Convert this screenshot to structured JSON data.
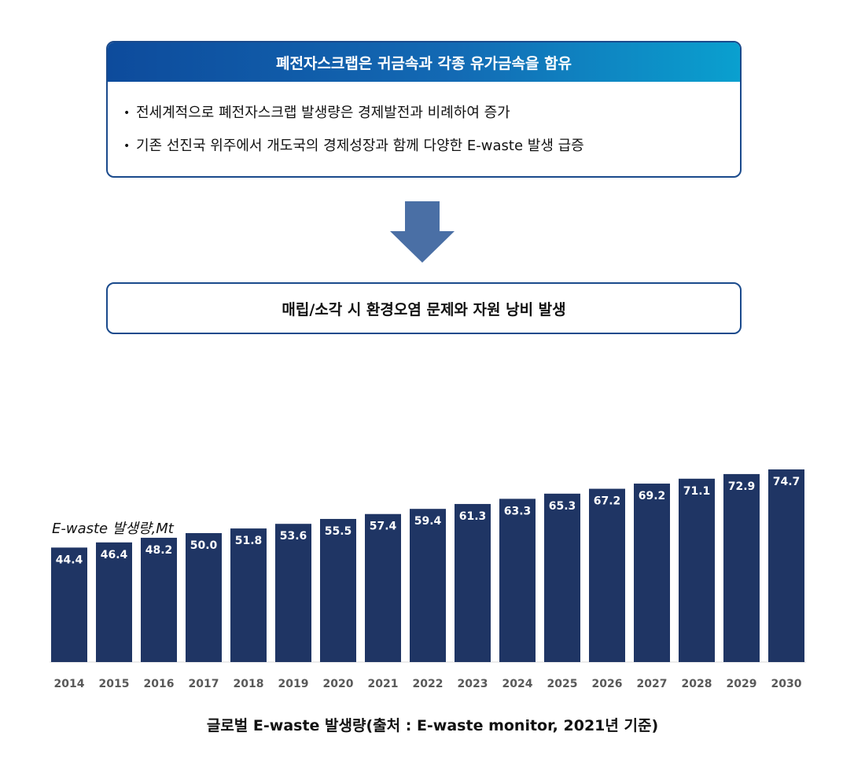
{
  "top_box": {
    "title": "폐전자스크랩은 귀금속과 각종 유가금속을 함유",
    "bullets": [
      "전세계적으로 폐전자스크랩 발생량은 경제발전과 비례하여 증가",
      "기존 선진국 위주에서 개도국의 경제성장과 함께 다양한 E-waste 발생 급증"
    ],
    "bullet_symbol": "•"
  },
  "arrow": {
    "icon": "down-arrow-icon",
    "color": "#4a6fa5"
  },
  "result_box": {
    "text": "매립/소각 시 환경오염 문제와 자원 낭비 발생"
  },
  "colors": {
    "bar": "#1f3564",
    "box_border": "#1a4a8c",
    "header_gradient": [
      "#0d4b9c",
      "#0aa0cf"
    ]
  },
  "chart_data": {
    "type": "bar",
    "categories": [
      "2014",
      "2015",
      "2016",
      "2017",
      "2018",
      "2019",
      "2020",
      "2021",
      "2022",
      "2023",
      "2024",
      "2025",
      "2026",
      "2027",
      "2028",
      "2029",
      "2030"
    ],
    "values": [
      44.4,
      46.4,
      48.2,
      50.0,
      51.8,
      53.6,
      55.5,
      57.4,
      59.4,
      61.3,
      63.3,
      65.3,
      67.2,
      69.2,
      71.1,
      72.9,
      74.7
    ],
    "value_labels": [
      "44.4",
      "46.4",
      "48.2",
      "50.0",
      "51.8",
      "53.6",
      "55.5",
      "57.4",
      "59.4",
      "61.3",
      "63.3",
      "65.3",
      "67.2",
      "69.2",
      "71.1",
      "72.9",
      "74.7"
    ],
    "ylabel": "E-waste 발생량,Mt",
    "title": "",
    "grid": false,
    "legend": "none"
  },
  "caption": "글로벌 E-waste 발생량(출처 : E-waste monitor, 2021년 기준)"
}
